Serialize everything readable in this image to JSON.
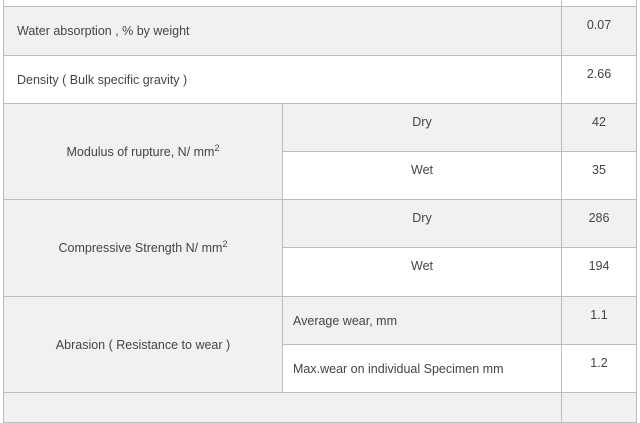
{
  "rows": {
    "water": {
      "label": "Water absorption , % by weight",
      "value": "0.07"
    },
    "density": {
      "label": "Density ( Bulk specific gravity )",
      "value": "2.66"
    },
    "rupture": {
      "label": "Modulus of rupture, N/ mm",
      "sup": "2",
      "dry_label": "Dry",
      "dry_value": "42",
      "wet_label": "Wet",
      "wet_value": "35"
    },
    "compressive": {
      "label": "Compressive Strength N/ mm",
      "sup": "2",
      "dry_label": "Dry",
      "dry_value": "286",
      "wet_label": "Wet",
      "wet_value": "194"
    },
    "abrasion": {
      "label": "Abrasion ( Resistance to wear )",
      "avg_label": "Average wear, mm",
      "avg_value": "1.1",
      "max_label": "Max.wear on individual Specimen mm",
      "max_value": "1.2"
    }
  }
}
